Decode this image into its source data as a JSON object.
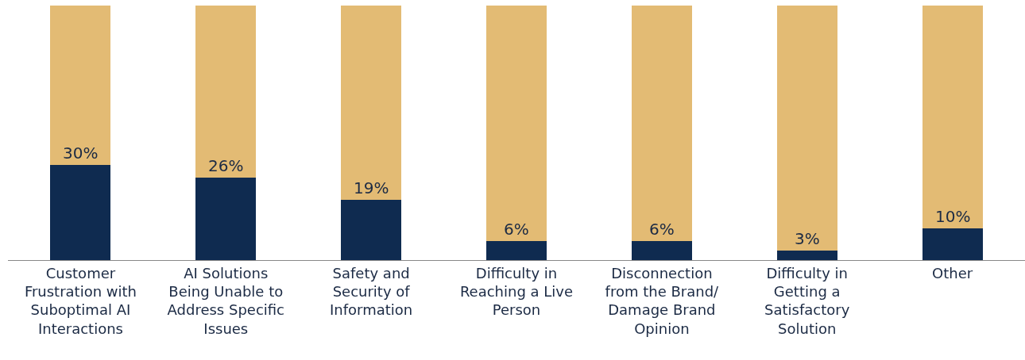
{
  "chart_data": {
    "type": "bar",
    "stacked": true,
    "categories": [
      "Customer Frustration with Suboptimal AI Interactions",
      "AI Solutions Being Unable to Address Specific Issues",
      "Safety and Security of Information",
      "Difficulty in Reaching a Live Person",
      "Disconnection from the Brand/ Damage Brand Opinion",
      "Difficulty in Getting a Satisfactory Solution",
      "Other"
    ],
    "series": [
      {
        "color": "#0f2b50",
        "values": [
          30,
          26,
          19,
          6,
          6,
          3,
          10
        ],
        "value_labels": [
          "30%",
          "26%",
          "19%",
          "6%",
          "6%",
          "3%",
          "10%"
        ]
      },
      {
        "color": "#e3bb74",
        "values": [
          50,
          54,
          61,
          74,
          74,
          77,
          70
        ]
      }
    ],
    "ylim": [
      0,
      80
    ]
  }
}
